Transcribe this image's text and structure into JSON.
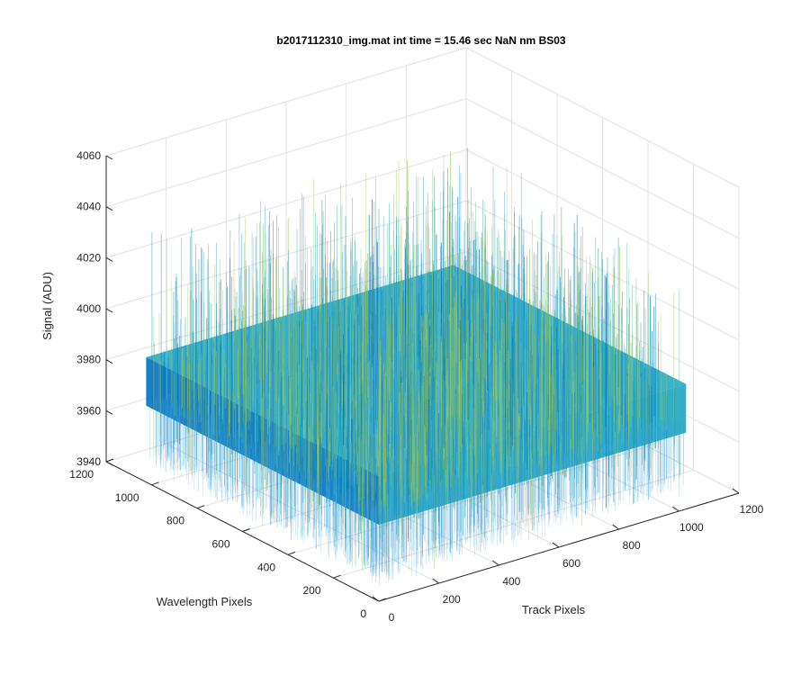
{
  "chart_data": {
    "type": "surface",
    "title": "b2017112310_img.mat int time = 15.46 sec  NaN nm BS03",
    "xlabel": "Track Pixels",
    "ylabel": "Wavelength Pixels",
    "zlabel": "Signal (ADU)",
    "xlim": [
      0,
      1200
    ],
    "ylim": [
      0,
      1200
    ],
    "zlim": [
      3940,
      4060
    ],
    "x_ticks": [
      "0",
      "200",
      "400",
      "600",
      "800",
      "1000",
      "1200"
    ],
    "y_ticks": [
      "0",
      "200",
      "400",
      "600",
      "800",
      "1000",
      "1200"
    ],
    "z_ticks": [
      "3940",
      "3960",
      "3980",
      "4000",
      "4020",
      "4040",
      "4060"
    ],
    "data_extent": {
      "x": [
        0,
        1024
      ],
      "y": [
        0,
        1024
      ]
    },
    "signal_mean": 3980,
    "signal_range": [
      3945,
      4040
    ],
    "colormap": "parula",
    "colors": {
      "low": "#0072BD",
      "mid": "#1AA5C4",
      "high": "#9BC862"
    },
    "grid": true
  }
}
